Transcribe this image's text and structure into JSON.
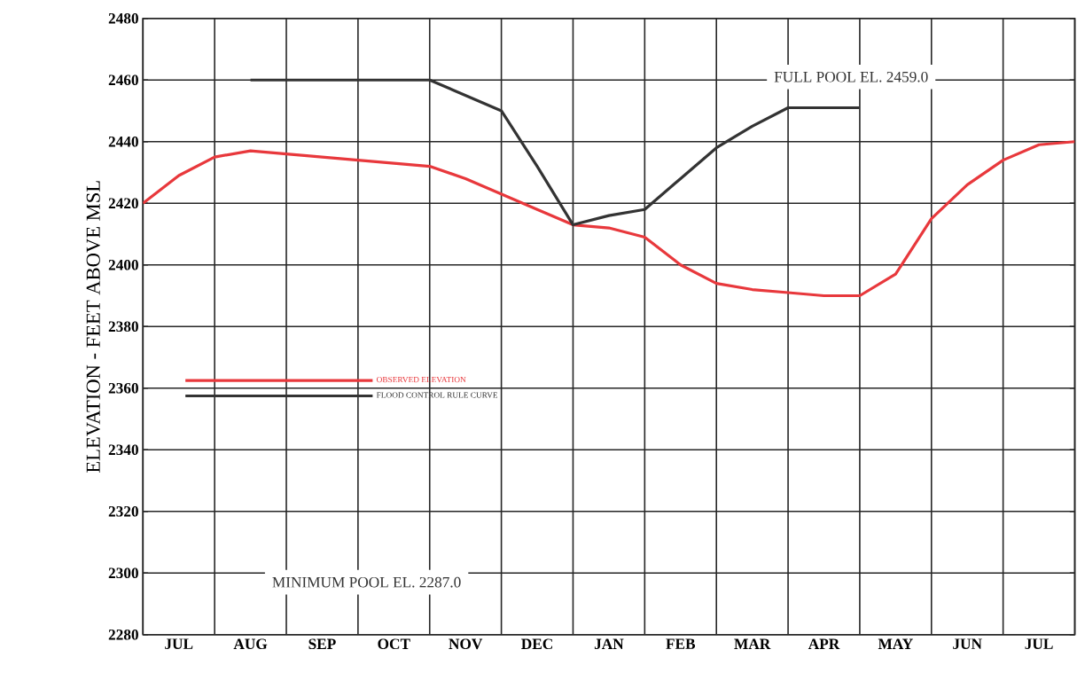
{
  "chart_data": {
    "type": "line",
    "ylabel": "ELEVATION - FEET ABOVE MSL",
    "categories": [
      null,
      "JUL",
      null,
      "AUG",
      null,
      "SEP",
      null,
      "OCT",
      null,
      "NOV",
      null,
      "DEC",
      null,
      "JAN",
      null,
      "FEB",
      null,
      "MAR",
      null,
      "APR",
      null,
      "MAY",
      null,
      "JUN",
      null,
      "JUL",
      null
    ],
    "ylim": [
      2280,
      2480
    ],
    "yticks": [
      2280,
      2300,
      2320,
      2340,
      2360,
      2380,
      2400,
      2420,
      2440,
      2460,
      2480
    ],
    "grid": true,
    "legend": "left",
    "marker": "none",
    "line_style": "solid",
    "series": [
      {
        "name": "OBSERVED ELEVATION",
        "color": "#e8383c",
        "values": [
          2420,
          2429,
          2435,
          2437,
          2436,
          2435,
          2434,
          2433,
          2432,
          2428,
          2423,
          2418,
          2413,
          2412,
          2409,
          2400,
          2394,
          2392,
          2391,
          2390,
          2390,
          2397,
          2415,
          2426,
          2434,
          2439,
          2440
        ]
      },
      {
        "name": "FLOOD CONTROL RULE CURVE",
        "color": "#333333",
        "values": [
          null,
          null,
          null,
          2460,
          2460,
          2460,
          2460,
          2460,
          2460,
          2455,
          2450,
          2432,
          2413,
          2416,
          2418,
          2428,
          2438,
          2445,
          2451,
          2451,
          2451,
          null,
          null,
          null,
          null,
          null,
          null
        ]
      }
    ],
    "annotations": [
      "FULL POOL EL. 2459.0",
      "MINIMUM POOL EL. 2287.0"
    ]
  }
}
